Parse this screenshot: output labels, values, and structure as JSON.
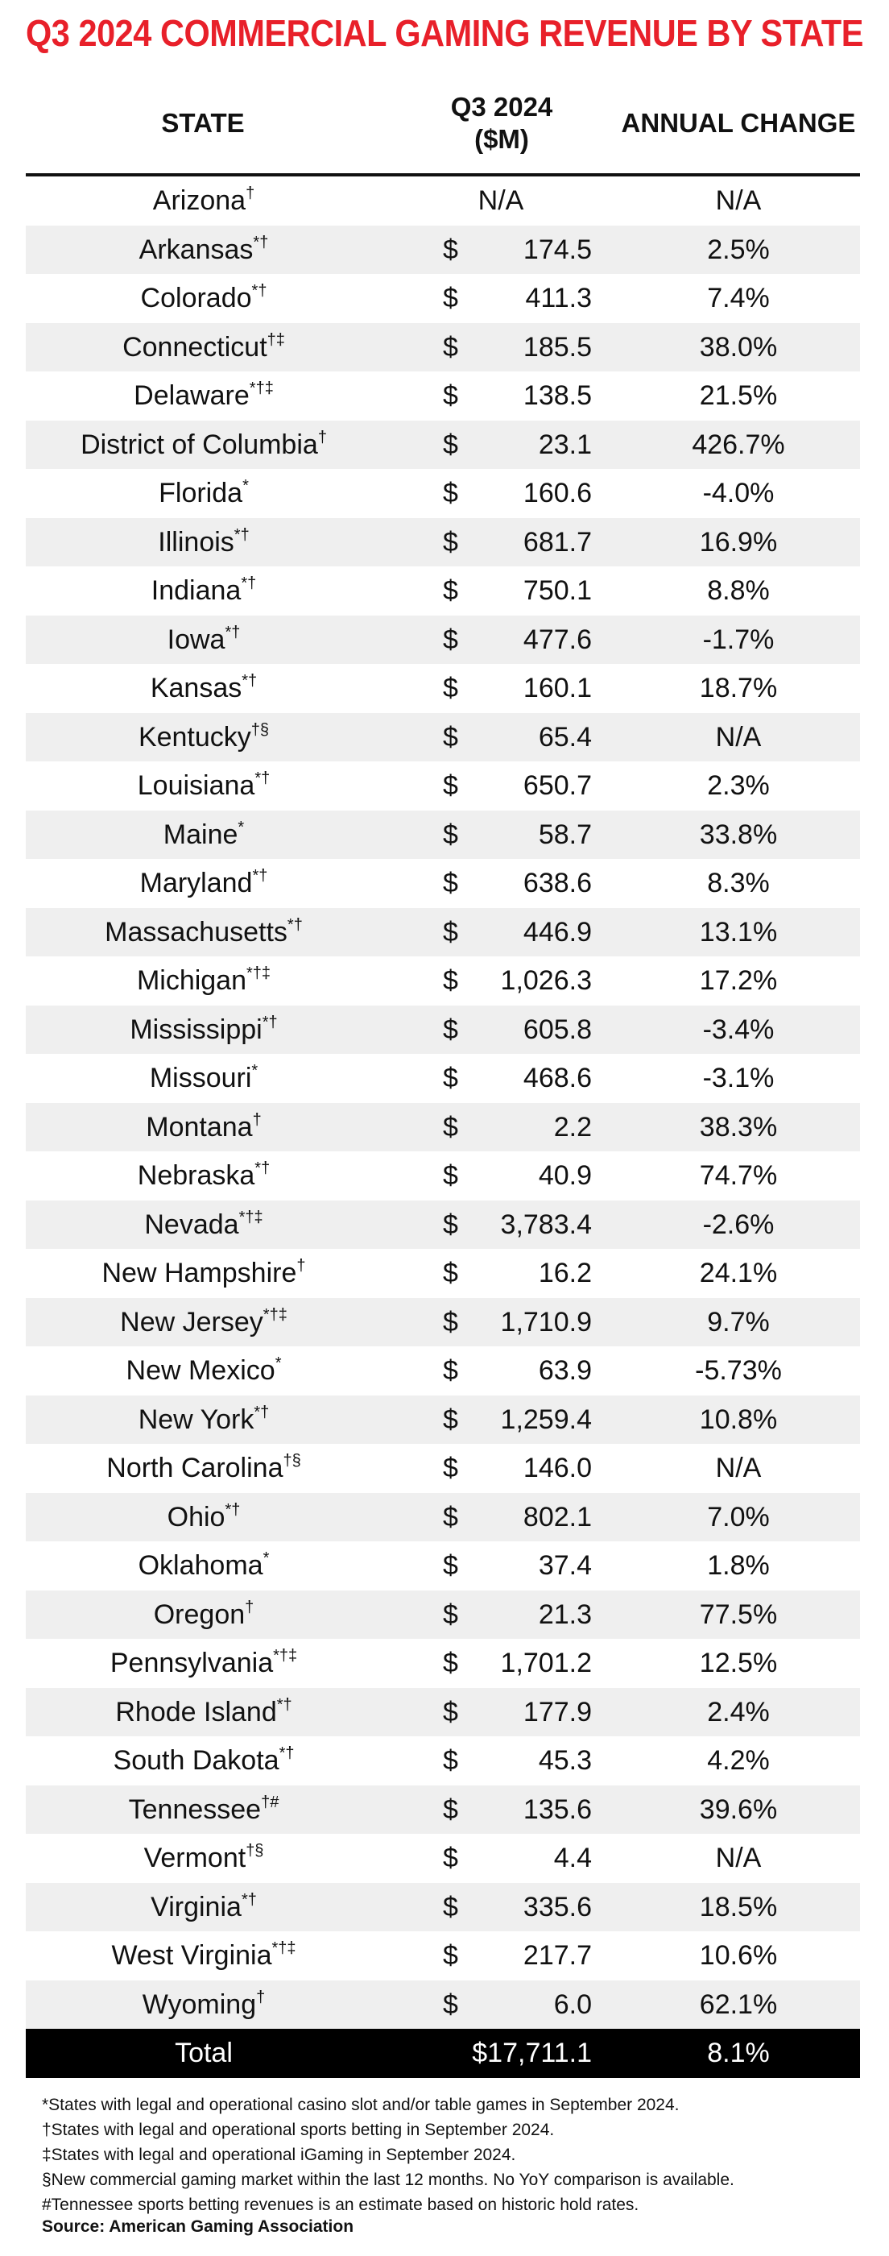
{
  "title": "Q3 2024 COMMERCIAL GAMING REVENUE BY STATE",
  "table": {
    "headers": {
      "state": "STATE",
      "revenue": [
        "Q3 2024",
        "($M)"
      ],
      "change": "ANNUAL CHANGE"
    },
    "rows": [
      {
        "state": "Arizona",
        "marks": "†",
        "revenue": "N/A",
        "change": "N/A"
      },
      {
        "state": "Arkansas",
        "marks": "*†",
        "currency": "$",
        "revenue": "174.5",
        "change": "2.5%"
      },
      {
        "state": "Colorado",
        "marks": "*†",
        "currency": "$",
        "revenue": "411.3",
        "change": "7.4%"
      },
      {
        "state": "Connecticut",
        "marks": "†‡",
        "currency": "$",
        "revenue": "185.5",
        "change": "38.0%"
      },
      {
        "state": "Delaware",
        "marks": "*†‡",
        "currency": "$",
        "revenue": "138.5",
        "change": "21.5%"
      },
      {
        "state": "District of Columbia",
        "marks": "†",
        "currency": "$",
        "revenue": "23.1",
        "change": "426.7%"
      },
      {
        "state": "Florida",
        "marks": "*",
        "currency": "$",
        "revenue": "160.6",
        "change": "-4.0%"
      },
      {
        "state": "Illinois",
        "marks": "*†",
        "currency": "$",
        "revenue": "681.7",
        "change": "16.9%"
      },
      {
        "state": "Indiana",
        "marks": "*†",
        "currency": "$",
        "revenue": "750.1",
        "change": "8.8%"
      },
      {
        "state": "Iowa",
        "marks": "*†",
        "currency": "$",
        "revenue": "477.6",
        "change": "-1.7%"
      },
      {
        "state": "Kansas",
        "marks": "*†",
        "currency": "$",
        "revenue": "160.1",
        "change": "18.7%"
      },
      {
        "state": "Kentucky",
        "marks": "†§",
        "currency": "$",
        "revenue": "65.4",
        "change": "N/A"
      },
      {
        "state": "Louisiana",
        "marks": "*†",
        "currency": "$",
        "revenue": "650.7",
        "change": "2.3%"
      },
      {
        "state": "Maine",
        "marks": "*",
        "currency": "$",
        "revenue": "58.7",
        "change": "33.8%"
      },
      {
        "state": "Maryland",
        "marks": "*†",
        "currency": "$",
        "revenue": "638.6",
        "change": "8.3%"
      },
      {
        "state": "Massachusetts",
        "marks": "*†",
        "currency": "$",
        "revenue": "446.9",
        "change": "13.1%"
      },
      {
        "state": "Michigan",
        "marks": "*†‡",
        "currency": "$",
        "revenue": "1,026.3",
        "change": "17.2%"
      },
      {
        "state": "Mississippi",
        "marks": "*†",
        "currency": "$",
        "revenue": "605.8",
        "change": "-3.4%"
      },
      {
        "state": "Missouri",
        "marks": "*",
        "currency": "$",
        "revenue": "468.6",
        "change": "-3.1%"
      },
      {
        "state": "Montana",
        "marks": "†",
        "currency": "$",
        "revenue": "2.2",
        "change": "38.3%"
      },
      {
        "state": "Nebraska",
        "marks": "*†",
        "currency": "$",
        "revenue": "40.9",
        "change": "74.7%"
      },
      {
        "state": "Nevada",
        "marks": "*†‡",
        "currency": "$",
        "revenue": "3,783.4",
        "change": "-2.6%"
      },
      {
        "state": "New Hampshire",
        "marks": "†",
        "currency": "$",
        "revenue": "16.2",
        "change": "24.1%"
      },
      {
        "state": "New Jersey",
        "marks": "*†‡",
        "currency": "$",
        "revenue": "1,710.9",
        "change": "9.7%"
      },
      {
        "state": "New Mexico",
        "marks": "*",
        "currency": "$",
        "revenue": "63.9",
        "change": "-5.73%"
      },
      {
        "state": "New York",
        "marks": "*†",
        "currency": "$",
        "revenue": "1,259.4",
        "change": "10.8%"
      },
      {
        "state": "North Carolina",
        "marks": "†§",
        "currency": "$",
        "revenue": "146.0",
        "change": "N/A"
      },
      {
        "state": "Ohio",
        "marks": "*†",
        "currency": "$",
        "revenue": "802.1",
        "change": "7.0%"
      },
      {
        "state": "Oklahoma",
        "marks": "*",
        "currency": "$",
        "revenue": "37.4",
        "change": "1.8%"
      },
      {
        "state": "Oregon",
        "marks": "†",
        "currency": "$",
        "revenue": "21.3",
        "change": "77.5%"
      },
      {
        "state": "Pennsylvania",
        "marks": "*†‡",
        "currency": "$",
        "revenue": "1,701.2",
        "change": "12.5%"
      },
      {
        "state": "Rhode Island",
        "marks": "*†",
        "currency": "$",
        "revenue": "177.9",
        "change": "2.4%"
      },
      {
        "state": "South Dakota",
        "marks": "*†",
        "currency": "$",
        "revenue": "45.3",
        "change": "4.2%"
      },
      {
        "state": "Tennessee",
        "marks": "†#",
        "currency": "$",
        "revenue": "135.6",
        "change": "39.6%"
      },
      {
        "state": "Vermont",
        "marks": "†§",
        "currency": "$",
        "revenue": "4.4",
        "change": "N/A"
      },
      {
        "state": "Virginia",
        "marks": "*†",
        "currency": "$",
        "revenue": "335.6",
        "change": "18.5%"
      },
      {
        "state": "West Virginia",
        "marks": "*†‡",
        "currency": "$",
        "revenue": "217.7",
        "change": "10.6%"
      },
      {
        "state": "Wyoming",
        "marks": "†",
        "currency": "$",
        "revenue": "6.0",
        "change": "62.1%"
      }
    ],
    "total": {
      "state": "Total",
      "revenue": "$17,711.1",
      "change": "8.1%"
    }
  },
  "footnotes": [
    "*States with legal and operational casino slot and/or table games in September 2024.",
    "†States with legal and operational sports betting in September 2024.",
    "‡States with legal and operational iGaming in September 2024.",
    "§New commercial gaming market within the last 12 months. No YoY comparison is available.",
    "#Tennessee sports betting revenues is an estimate based on historic hold rates."
  ],
  "source": "Source: American Gaming Association"
}
